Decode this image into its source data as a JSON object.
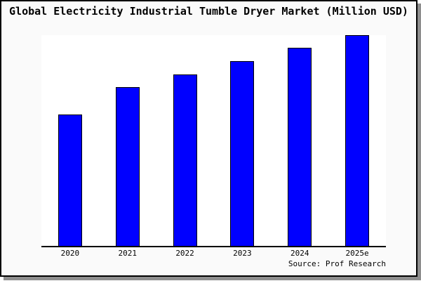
{
  "chart": {
    "title": "Global Electricity Industrial Tumble Dryer Market (Million USD)",
    "source": "Source: Prof Research"
  },
  "chart_data": {
    "type": "bar",
    "title": "Global Electricity Industrial Tumble Dryer Market (Million USD)",
    "categories": [
      "2020",
      "2021",
      "2022",
      "2023",
      "2024",
      "2025e"
    ],
    "values": [
      62.4,
      75.2,
      81.4,
      87.7,
      93.9,
      100
    ],
    "values_note_unit": "Million USD (relative scale, y-axis not labeled in chart)",
    "xlabel": "",
    "ylabel": "",
    "ylim": [
      0,
      100
    ],
    "y_axis_visible": false,
    "grid": false,
    "legend": false,
    "annotation": "Source: Prof Research"
  },
  "colors": {
    "canvas_background": "#fafafa",
    "plot_background": "#ffffff",
    "bar_fill": "#0000ff",
    "bar_edge": "#000000",
    "axis": "#000000",
    "frame_border": "#000000",
    "frame_shadow": "#8e8e8e",
    "text": "#000000"
  }
}
